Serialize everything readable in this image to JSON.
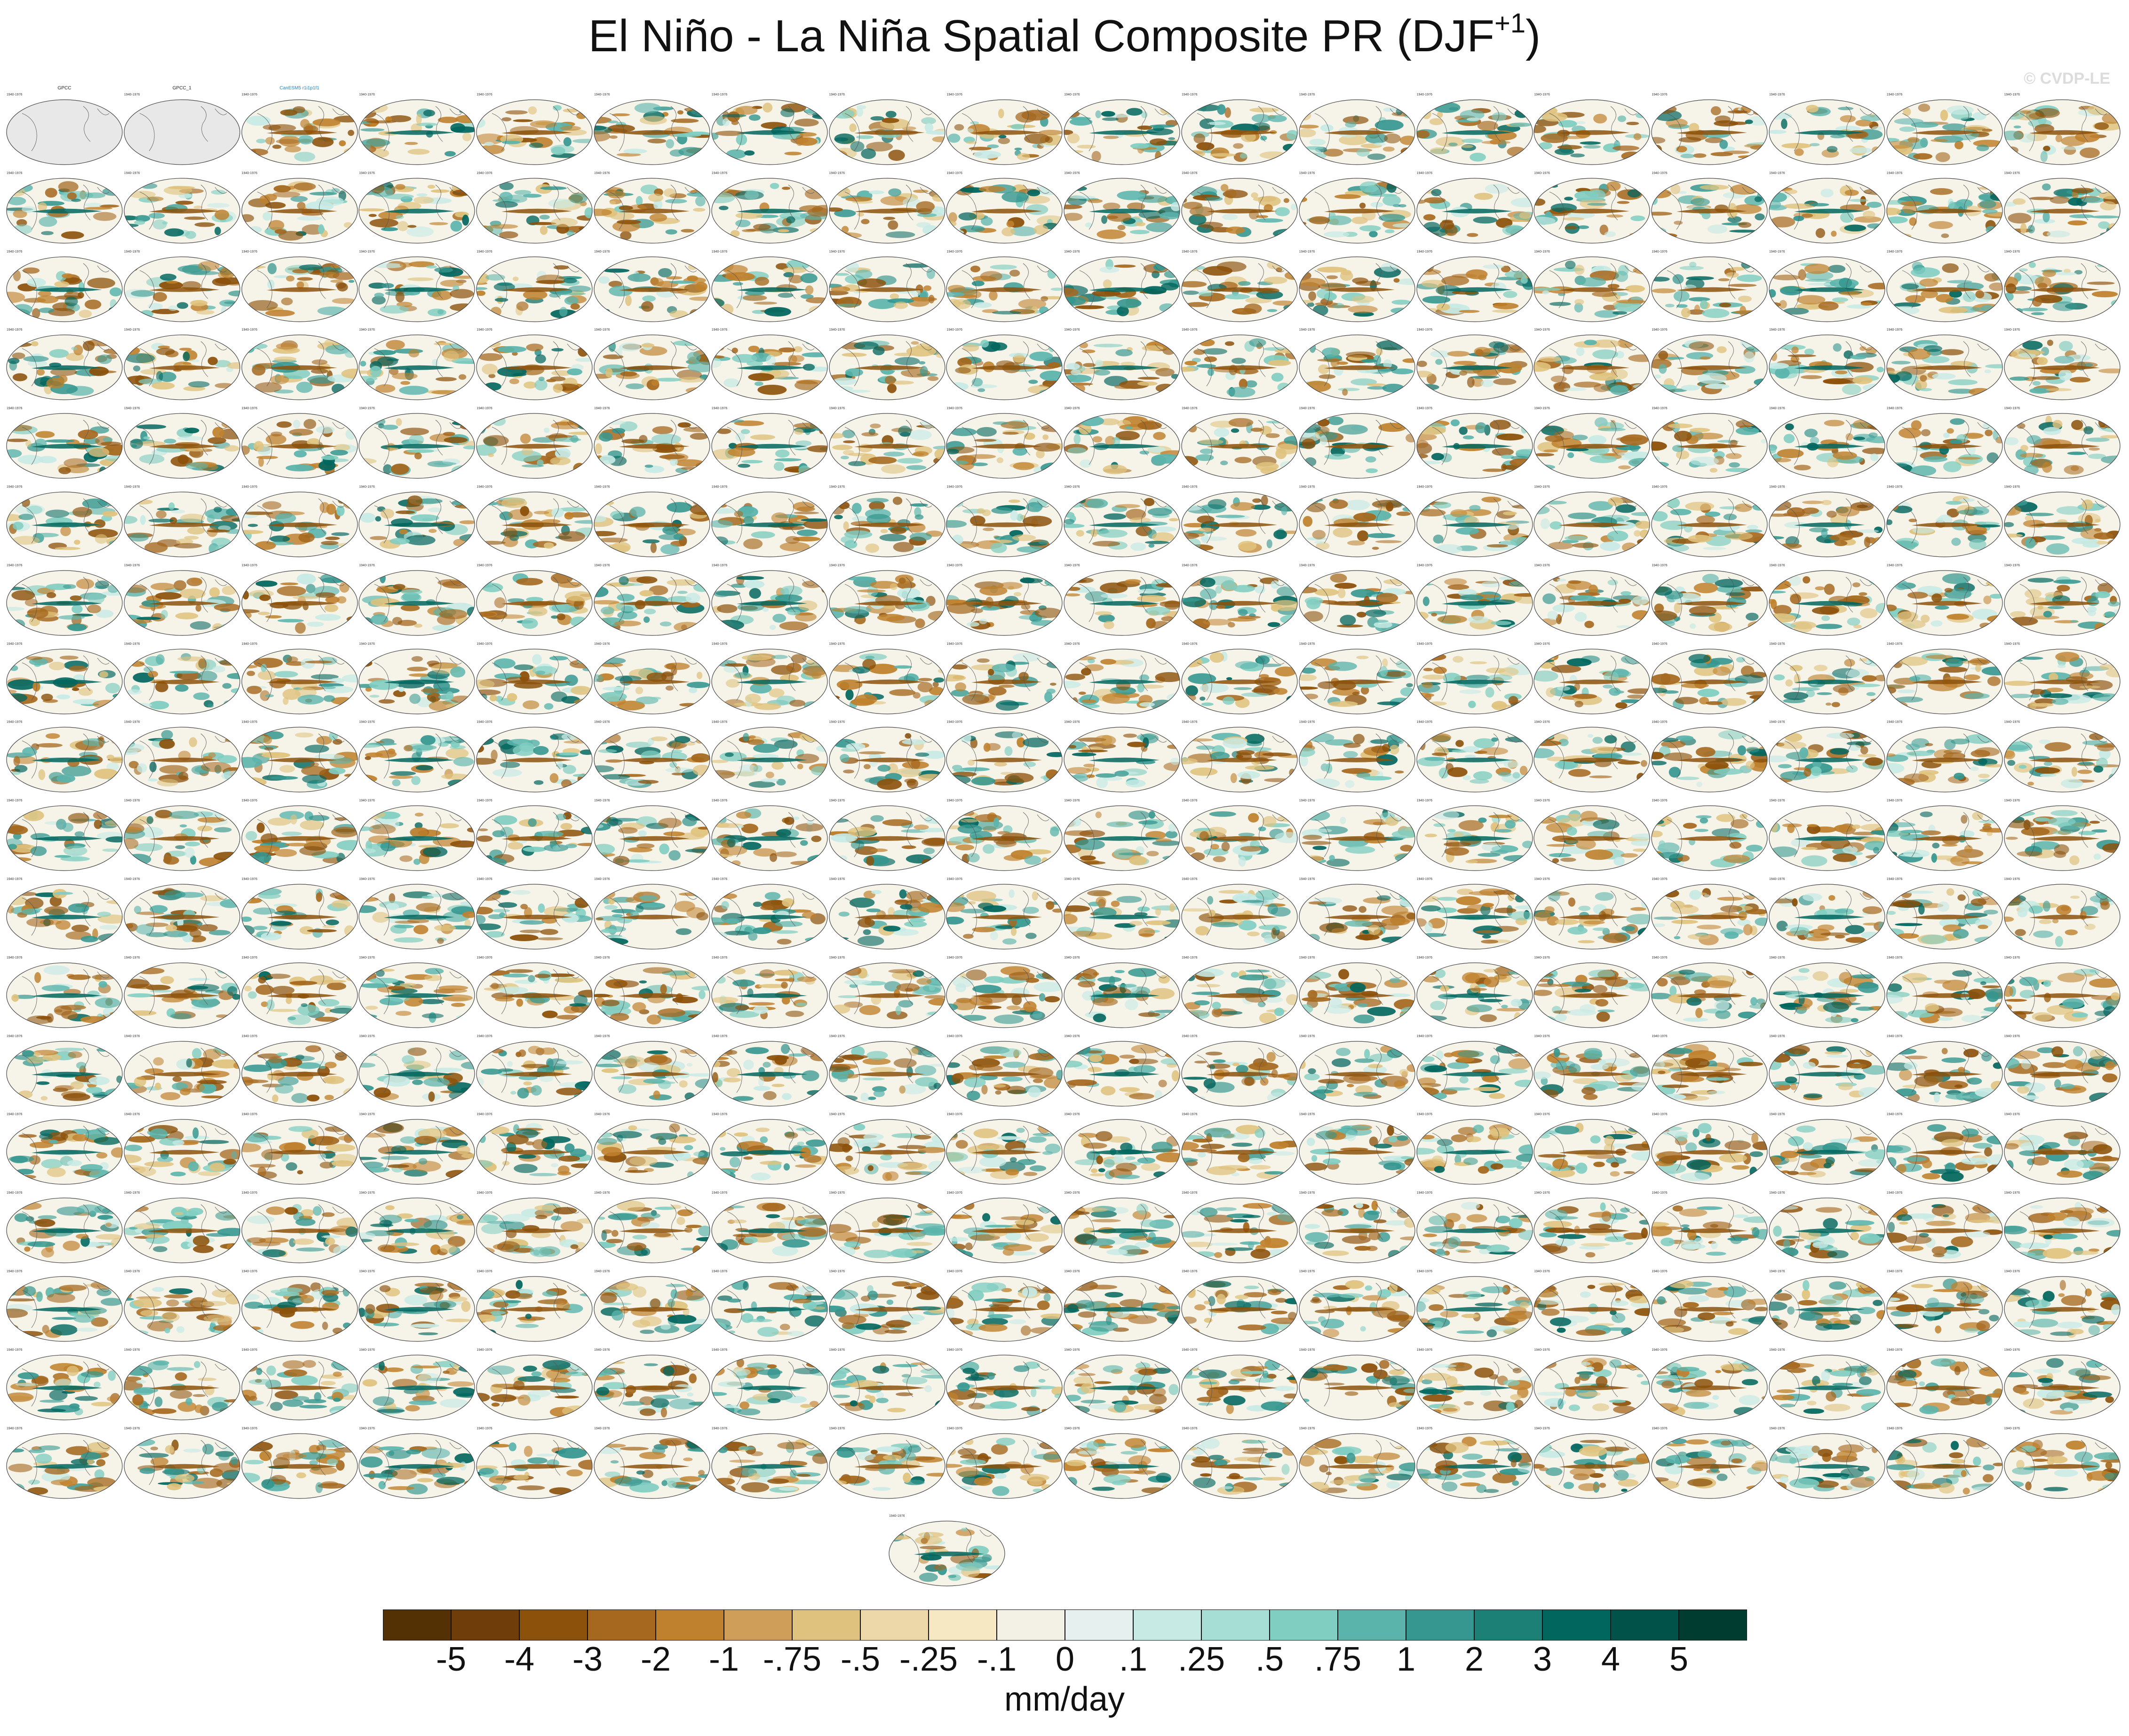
{
  "title": {
    "main": "El Niño - La Niña Spatial Composite PR (DJF",
    "sup": "+1",
    "close": ")"
  },
  "watermark": "© CVDP-LE",
  "panel_grid": {
    "rows": 18,
    "cols": 18,
    "last_row_panels": 1,
    "panels": [
      {
        "title": "GPCC",
        "title_color": "#222222",
        "blank": true
      },
      {
        "title": "GPCC_1",
        "title_color": "#222222",
        "blank": true
      },
      {
        "title": "CanESM5 r1i1p1f1",
        "title_color": "#1f88c9"
      }
    ],
    "model_groups": [
      {
        "label": "CanESM5",
        "color": "#1f88c9"
      },
      {
        "label": "CESM2-LENS",
        "color": "#9ab4c8"
      },
      {
        "label": "CNRM-CM6-1",
        "color": "#88b8dc"
      },
      {
        "label": "GISS-E2-1-G",
        "color": "#d08a7a"
      },
      {
        "label": "IPSL-CM6A-LR",
        "color": "#8888e0"
      },
      {
        "label": "MIROC6",
        "color": "#b9c2da"
      }
    ],
    "period_label": "1940-1976"
  },
  "colorbar": {
    "labels": [
      "-5",
      "-4",
      "-3",
      "-2",
      "-1",
      "-.75",
      "-.5",
      "-.25",
      "-.1",
      "0",
      ".1",
      ".25",
      ".5",
      ".75",
      "1",
      "2",
      "3",
      "4",
      "5"
    ],
    "colors": [
      "#543005",
      "#6e3d0a",
      "#8c510a",
      "#a5681e",
      "#bf812d",
      "#cf9f5a",
      "#dfc27d",
      "#ecd8a8",
      "#f6e8c3",
      "#f3f0e6",
      "#e6f1ef",
      "#c7eae5",
      "#a6ded5",
      "#80cdc1",
      "#5ab4ac",
      "#35978f",
      "#1d8077",
      "#01665e",
      "#01534a",
      "#003c30"
    ],
    "units": "mm/day"
  }
}
